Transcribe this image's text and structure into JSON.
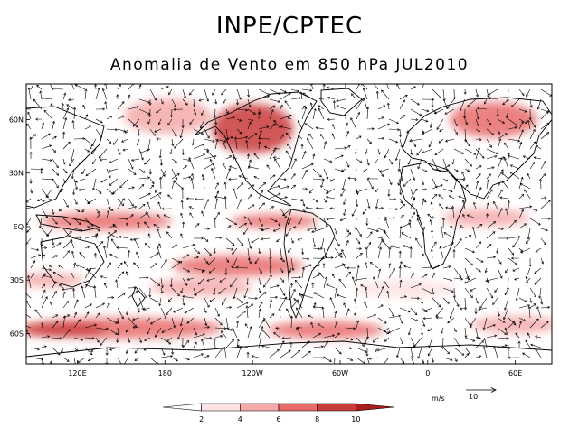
{
  "header": {
    "org": "INPE/CPTEC",
    "subtitle": "Anomalia de Vento em 850 hPa JUL2010"
  },
  "map": {
    "lat_labels": [
      "60N",
      "30N",
      "EQ",
      "30S",
      "60S"
    ],
    "lat_values": [
      60,
      30,
      0,
      -30,
      -60
    ],
    "lon_labels": [
      "120E",
      "180",
      "120W",
      "60W",
      "0",
      "60E"
    ],
    "lon_values": [
      120,
      180,
      240,
      300,
      360,
      420
    ],
    "lon_range": [
      85,
      445
    ],
    "lat_range": [
      -77,
      80
    ]
  },
  "reference_vector": {
    "unit": "m/s",
    "value": "10"
  },
  "colorbar": {
    "ticks": [
      "2",
      "4",
      "6",
      "8",
      "10"
    ],
    "colors": [
      "#ffffff",
      "#fde2e2",
      "#f6a9a9",
      "#e86b6b",
      "#c93a3a",
      "#a81e1e"
    ]
  },
  "shading_regions": [
    {
      "lon": 240,
      "lat": 55,
      "w": 28,
      "h": 14,
      "level": 4
    },
    {
      "lon": 182,
      "lat": 62,
      "w": 30,
      "h": 10,
      "level": 2
    },
    {
      "lon": 405,
      "lat": 60,
      "w": 30,
      "h": 10,
      "level": 3
    },
    {
      "lon": 140,
      "lat": 3,
      "w": 45,
      "h": 5,
      "level": 3
    },
    {
      "lon": 255,
      "lat": 3,
      "w": 30,
      "h": 4,
      "level": 3
    },
    {
      "lon": 230,
      "lat": -22,
      "w": 45,
      "h": 6,
      "level": 3
    },
    {
      "lon": 400,
      "lat": 5,
      "w": 30,
      "h": 5,
      "level": 2
    },
    {
      "lon": 100,
      "lat": -30,
      "w": 25,
      "h": 4,
      "level": 2
    },
    {
      "lon": 150,
      "lat": -57,
      "w": 70,
      "h": 6,
      "level": 3
    },
    {
      "lon": 290,
      "lat": -58,
      "w": 40,
      "h": 5,
      "level": 3
    },
    {
      "lon": 420,
      "lat": -55,
      "w": 30,
      "h": 5,
      "level": 2
    },
    {
      "lon": 110,
      "lat": -58,
      "w": 30,
      "h": 4,
      "level": 4
    },
    {
      "lon": 205,
      "lat": -34,
      "w": 35,
      "h": 5,
      "level": 2
    },
    {
      "lon": 345,
      "lat": -35,
      "w": 35,
      "h": 5,
      "level": 1
    }
  ]
}
